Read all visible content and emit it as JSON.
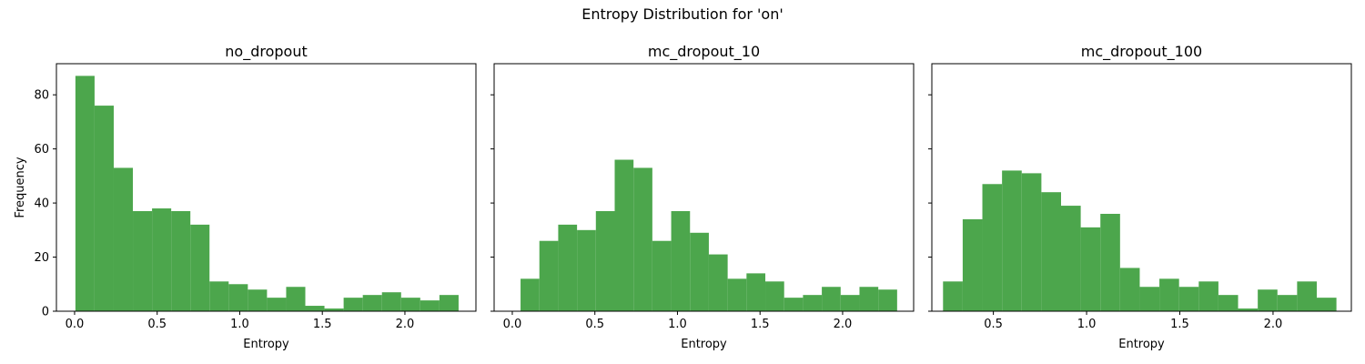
{
  "figure_title": "Entropy Distribution for 'on'",
  "bar_color": "#4ca64c",
  "chart_data": [
    {
      "type": "bar",
      "title": "no_dropout",
      "xlabel": "Entropy",
      "ylabel": "Frequency",
      "xlim": [
        -0.11,
        2.43
      ],
      "ylim": [
        0,
        91.5
      ],
      "xticks": [
        0.0,
        0.5,
        1.0,
        1.5,
        2.0
      ],
      "xtick_labels": [
        "0.0",
        "0.5",
        "1.0",
        "1.5",
        "2.0"
      ],
      "yticks": [
        0,
        20,
        40,
        60,
        80
      ],
      "ytick_labels": [
        "0",
        "20",
        "40",
        "60",
        "80"
      ],
      "bin_edges": [
        0.005,
        0.121,
        0.237,
        0.353,
        0.469,
        0.585,
        0.701,
        0.817,
        0.933,
        1.049,
        1.165,
        1.281,
        1.397,
        1.513,
        1.629,
        1.745,
        1.861,
        1.977,
        2.093,
        2.209,
        2.325
      ],
      "values": [
        87,
        76,
        53,
        37,
        38,
        37,
        32,
        11,
        10,
        8,
        5,
        9,
        2,
        1,
        5,
        6,
        7,
        5,
        4,
        6
      ]
    },
    {
      "type": "bar",
      "title": "mc_dropout_10",
      "xlabel": "Entropy",
      "ylabel": "",
      "xlim": [
        -0.11,
        2.43
      ],
      "ylim": [
        0,
        91.5
      ],
      "xticks": [
        0.0,
        0.5,
        1.0,
        1.5,
        2.0
      ],
      "xtick_labels": [
        "0.0",
        "0.5",
        "1.0",
        "1.5",
        "2.0"
      ],
      "yticks": [
        0,
        20,
        40,
        60,
        80
      ],
      "ytick_labels": [],
      "bin_edges": [
        0.05,
        0.164,
        0.278,
        0.392,
        0.506,
        0.62,
        0.734,
        0.848,
        0.962,
        1.076,
        1.19,
        1.304,
        1.418,
        1.532,
        1.646,
        1.76,
        1.874,
        1.988,
        2.102,
        2.216,
        2.33
      ],
      "values": [
        12,
        26,
        32,
        30,
        37,
        56,
        53,
        26,
        37,
        29,
        21,
        12,
        14,
        11,
        5,
        6,
        9,
        6,
        9,
        8
      ]
    },
    {
      "type": "bar",
      "title": "mc_dropout_100",
      "xlabel": "Entropy",
      "ylabel": "",
      "xlim": [
        0.17,
        2.42
      ],
      "ylim": [
        0,
        91.5
      ],
      "xticks": [
        0.5,
        1.0,
        1.5,
        2.0
      ],
      "xtick_labels": [
        "0.5",
        "1.0",
        "1.5",
        "2.0"
      ],
      "yticks": [
        0,
        20,
        40,
        60,
        80
      ],
      "ytick_labels": [],
      "bin_edges": [
        0.23,
        0.3355,
        0.441,
        0.5465,
        0.652,
        0.7575,
        0.863,
        0.9685,
        1.074,
        1.1795,
        1.285,
        1.3905,
        1.496,
        1.6015,
        1.707,
        1.8125,
        1.918,
        2.0235,
        2.129,
        2.2345,
        2.34
      ],
      "values": [
        11,
        34,
        47,
        52,
        51,
        44,
        39,
        31,
        36,
        16,
        9,
        12,
        9,
        11,
        6,
        1,
        8,
        6,
        11,
        5
      ]
    }
  ]
}
